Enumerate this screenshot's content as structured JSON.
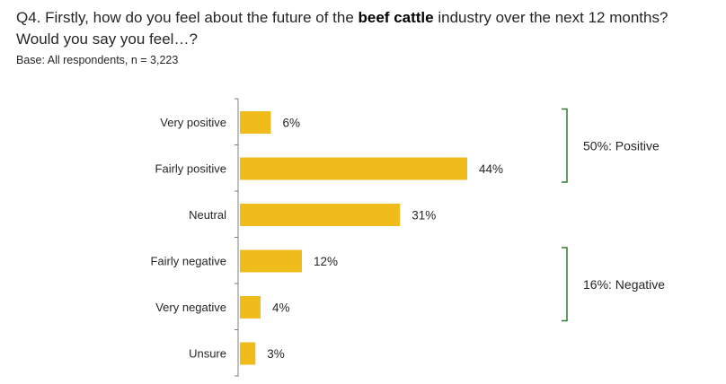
{
  "header": {
    "question_prefix": "Q4. Firstly, how do you feel about the future of the ",
    "question_bold": "beef cattle",
    "question_suffix": " industry over the next 12 months? Would you say you feel…?",
    "base": "Base: All respondents, n = 3,223"
  },
  "colors": {
    "bar": "#f0bc1c",
    "axis": "#808080",
    "bracket": "#2e7d32",
    "text": "#262626"
  },
  "chart_data": {
    "type": "bar",
    "orientation": "horizontal",
    "categories": [
      "Very positive",
      "Fairly positive",
      "Neutral",
      "Fairly negative",
      "Very negative",
      "Unsure"
    ],
    "values": [
      6,
      44,
      31,
      12,
      4,
      3
    ],
    "value_labels": [
      "6%",
      "44%",
      "31%",
      "12%",
      "4%",
      "3%"
    ],
    "unit": "%",
    "xlim": [
      0,
      100
    ],
    "grid": false,
    "groups": [
      {
        "label": "50%: Positive",
        "categories": [
          "Very positive",
          "Fairly positive"
        ]
      },
      {
        "label": "16%: Negative",
        "categories": [
          "Fairly negative",
          "Very negative"
        ]
      }
    ]
  }
}
